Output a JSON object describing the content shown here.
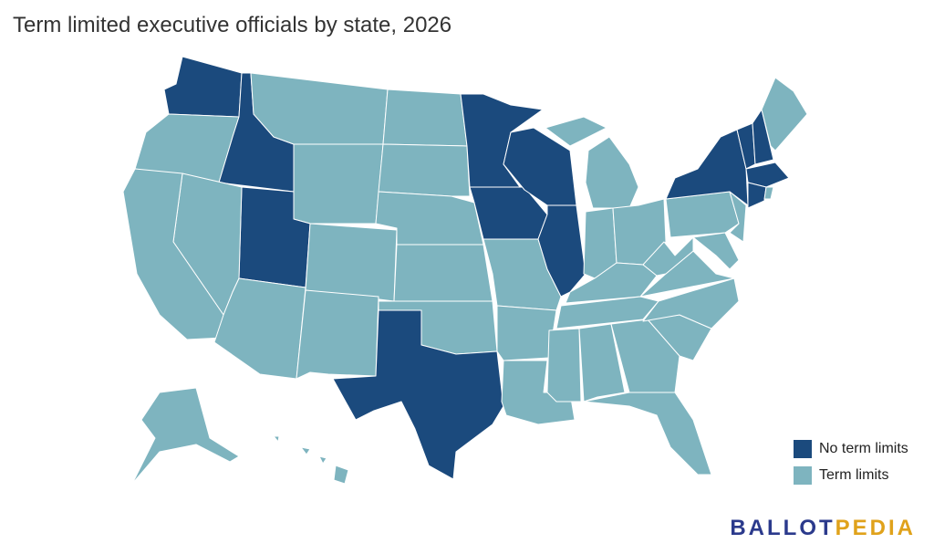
{
  "header": {
    "title": "Term limited executive officials by state, 2026"
  },
  "legend": [
    {
      "label": "No term limits",
      "color": "#1b4a7d"
    },
    {
      "label": "Term limits",
      "color": "#7eb4bf"
    }
  ],
  "logo": {
    "part1": "BALLOT",
    "part1_color": "#2b3a8c",
    "part2": "PEDIA",
    "part2_color": "#e0a21b"
  }
}
